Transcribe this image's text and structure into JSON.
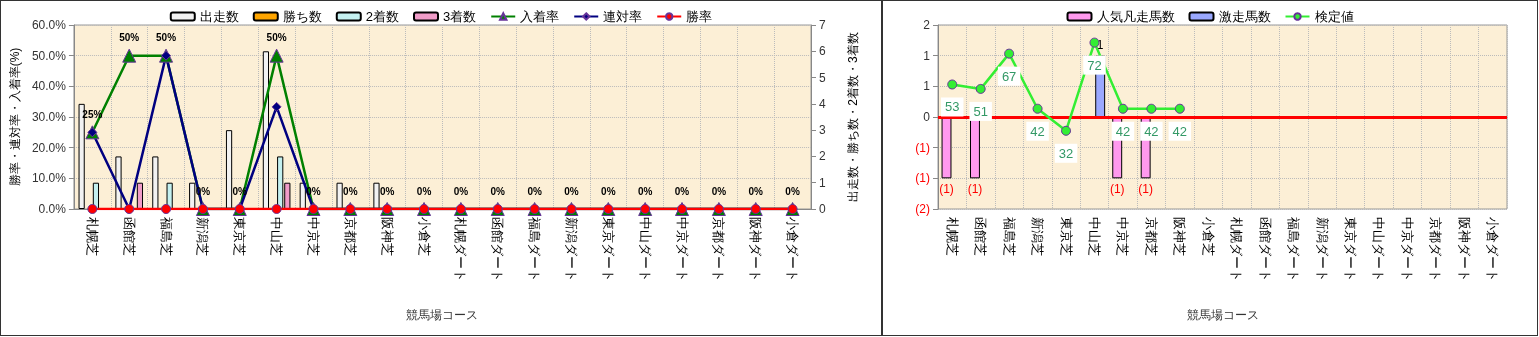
{
  "chart_data": [
    {
      "type": "bar",
      "xlabel": "競馬場コース",
      "ylabel": "勝率・連対率・入着率(%)",
      "y2label": "出走数・勝ち数・2着数・3着数",
      "categories": [
        "札幌芝",
        "函館芝",
        "福島芝",
        "新潟芝",
        "東京芝",
        "中山芝",
        "中京芝",
        "京都芝",
        "阪神芝",
        "小倉芝",
        "札幌ダート",
        "函館ダート",
        "福島ダート",
        "新潟ダート",
        "東京ダート",
        "中山ダート",
        "中京ダート",
        "京都ダート",
        "阪神ダート",
        "小倉ダート"
      ],
      "ylim": [
        0,
        60
      ],
      "yticks": [
        {
          "value": 0,
          "label": "0.0%"
        },
        {
          "value": 10,
          "label": "10.0%"
        },
        {
          "value": 20,
          "label": "20.0%"
        },
        {
          "value": 30,
          "label": "30.0%"
        },
        {
          "value": 40,
          "label": "40.0%"
        },
        {
          "value": 50,
          "label": "50.0%"
        },
        {
          "value": 60,
          "label": "60.0%"
        }
      ],
      "y2lim": [
        0,
        7
      ],
      "y2ticks": [
        0,
        1,
        2,
        3,
        4,
        5,
        6,
        7
      ],
      "grid": true,
      "legend": "top",
      "series": [
        {
          "name": "出走数",
          "axis": "y2",
          "color": "#f2f2f2",
          "values": [
            4,
            2,
            2,
            1,
            3,
            6,
            1,
            1,
            1,
            0,
            0,
            0,
            0,
            0,
            0,
            0,
            0,
            0,
            0,
            0
          ]
        },
        {
          "name": "勝ち数",
          "axis": "y2",
          "color": "#ffa500",
          "values": [
            0,
            0,
            0,
            0,
            0,
            0,
            0,
            0,
            0,
            0,
            0,
            0,
            0,
            0,
            0,
            0,
            0,
            0,
            0,
            0
          ]
        },
        {
          "name": "2着数",
          "axis": "y2",
          "color": "#c4f0f0",
          "values": [
            1,
            0,
            1,
            0,
            0,
            2,
            0,
            0,
            0,
            0,
            0,
            0,
            0,
            0,
            0,
            0,
            0,
            0,
            0,
            0
          ]
        },
        {
          "name": "3着数",
          "axis": "y2",
          "color": "#f09cc8",
          "values": [
            0,
            1,
            0,
            0,
            0,
            1,
            0,
            0,
            0,
            0,
            0,
            0,
            0,
            0,
            0,
            0,
            0,
            0,
            0,
            0
          ]
        },
        {
          "name": "入着率",
          "type": "line",
          "axis": "y",
          "color": "#008000",
          "marker": "triangle",
          "values": [
            25,
            50,
            50,
            0,
            0,
            50,
            0,
            0,
            0,
            0,
            0,
            0,
            0,
            0,
            0,
            0,
            0,
            0,
            0,
            0
          ],
          "value_labels": [
            "25%",
            "50%",
            "50%",
            "0%",
            "0%",
            "50%",
            "0%",
            "0%",
            "0%",
            "0%",
            "0%",
            "0%",
            "0%",
            "0%",
            "0%",
            "0%",
            "0%",
            "0%",
            "0%",
            "0%"
          ]
        },
        {
          "name": "連対率",
          "type": "line",
          "axis": "y",
          "color": "#000080",
          "marker": "diamond",
          "values": [
            25,
            0,
            50,
            0,
            0,
            33.3,
            0,
            0,
            0,
            0,
            0,
            0,
            0,
            0,
            0,
            0,
            0,
            0,
            0,
            0
          ]
        },
        {
          "name": "勝率",
          "type": "line",
          "axis": "y",
          "color": "#ff0000",
          "marker": "circle",
          "values": [
            0,
            0,
            0,
            0,
            0,
            0,
            0,
            0,
            0,
            0,
            0,
            0,
            0,
            0,
            0,
            0,
            0,
            0,
            0,
            0
          ]
        }
      ]
    },
    {
      "type": "bar",
      "xlabel": "競馬場コース",
      "categories": [
        "札幌芝",
        "函館芝",
        "福島芝",
        "新潟芝",
        "東京芝",
        "中山芝",
        "中京芝",
        "京都芝",
        "阪神芝",
        "小倉芝",
        "札幌ダート",
        "函館ダート",
        "福島ダート",
        "新潟ダート",
        "東京ダート",
        "中山ダート",
        "中京ダート",
        "京都ダート",
        "阪神ダート",
        "小倉ダート"
      ],
      "ylim": [
        -1.5,
        1.5
      ],
      "yticks": [
        {
          "value": -1.5,
          "label": "(2)"
        },
        {
          "value": -1,
          "label": "(1)"
        },
        {
          "value": -0.5,
          "label": "(1)"
        },
        {
          "value": 0,
          "label": "0"
        },
        {
          "value": 0.5,
          "label": "1"
        },
        {
          "value": 1,
          "label": "1"
        },
        {
          "value": 1.5,
          "label": "2"
        }
      ],
      "y2lim": [
        -3.5,
        80
      ],
      "grid": true,
      "legend": "top",
      "ref_lines": [
        {
          "axis": "y",
          "value": 0,
          "color": "#ff0000"
        }
      ],
      "series": [
        {
          "name": "人気凡走馬数",
          "axis": "y",
          "color": "#ff99ee",
          "values": [
            -1,
            -1,
            null,
            null,
            null,
            null,
            -1,
            -1,
            null,
            null,
            null,
            null,
            null,
            null,
            null,
            null,
            null,
            null,
            null,
            null
          ],
          "value_labels": [
            "(1)",
            "(1)",
            null,
            null,
            null,
            null,
            "(1)",
            "(1)",
            null,
            null,
            null,
            null,
            null,
            null,
            null,
            null,
            null,
            null,
            null,
            null
          ]
        },
        {
          "name": "激走馬数",
          "axis": "y",
          "color": "#9aa8ff",
          "values": [
            null,
            null,
            null,
            null,
            null,
            1,
            null,
            null,
            null,
            null,
            null,
            null,
            null,
            null,
            null,
            null,
            null,
            null,
            null,
            null
          ],
          "value_labels": [
            null,
            null,
            null,
            null,
            null,
            "1",
            null,
            null,
            null,
            null,
            null,
            null,
            null,
            null,
            null,
            null,
            null,
            null,
            null,
            null
          ]
        },
        {
          "name": "検定値",
          "type": "line",
          "axis": "y2",
          "color": "#33ee33",
          "marker": "circle",
          "values": [
            53,
            51,
            67,
            42,
            32,
            72,
            42,
            42,
            42,
            null,
            null,
            null,
            null,
            null,
            null,
            null,
            null,
            null,
            null,
            null
          ],
          "value_labels": [
            "53",
            "51",
            "67",
            "42",
            "32",
            "72",
            "42",
            "42",
            "42",
            null,
            null,
            null,
            null,
            null,
            null,
            null,
            null,
            null,
            null,
            null
          ]
        }
      ]
    }
  ]
}
